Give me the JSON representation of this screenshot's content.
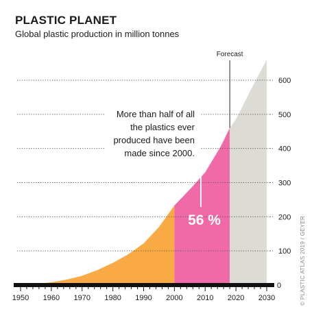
{
  "colors": {
    "pre_2000": "#f9aa45",
    "since_2000": "#ef6aa6",
    "forecast": "#dcdbd5",
    "text": "#1a1a1a"
  },
  "header": {
    "title": "PLASTIC PLANET",
    "subtitle": "Global plastic production in million tonnes"
  },
  "credit": "© PLASTIC ATLAS 2019 / GEYER",
  "chart_data": {
    "type": "area",
    "title": "PLASTIC PLANET",
    "subtitle": "Global plastic production in million tonnes",
    "xlim": [
      1950,
      2030
    ],
    "ylim": [
      0,
      600
    ],
    "x_ticks": [
      1950,
      1960,
      1970,
      1980,
      1990,
      2000,
      2010,
      2020,
      2030
    ],
    "y_ticks": [
      100,
      200,
      300,
      400,
      500,
      600
    ],
    "y_zero_label": "0",
    "grid": "horizontal dotted",
    "x": [
      1950,
      1955,
      1960,
      1965,
      1970,
      1975,
      1980,
      1985,
      1990,
      1995,
      2000,
      2005,
      2010,
      2015,
      2018,
      2020,
      2025,
      2030
    ],
    "y": [
      2,
      4,
      8,
      16,
      27,
      44,
      65,
      90,
      122,
      170,
      233,
      280,
      330,
      405,
      460,
      485,
      575,
      660
    ],
    "segments": [
      {
        "from": 1950,
        "to": 2000,
        "color_key": "pre_2000"
      },
      {
        "from": 2000,
        "to": 2018,
        "color_key": "since_2000"
      },
      {
        "from": 2018,
        "to": 2030,
        "color_key": "forecast"
      }
    ],
    "annotations": {
      "forecast_label": "Forecast",
      "forecast_year": 2018,
      "callout_lines": [
        "More than half of all",
        "the plastics ever",
        "produced have been",
        "made since 2000."
      ],
      "percent_label": "56 %"
    }
  }
}
